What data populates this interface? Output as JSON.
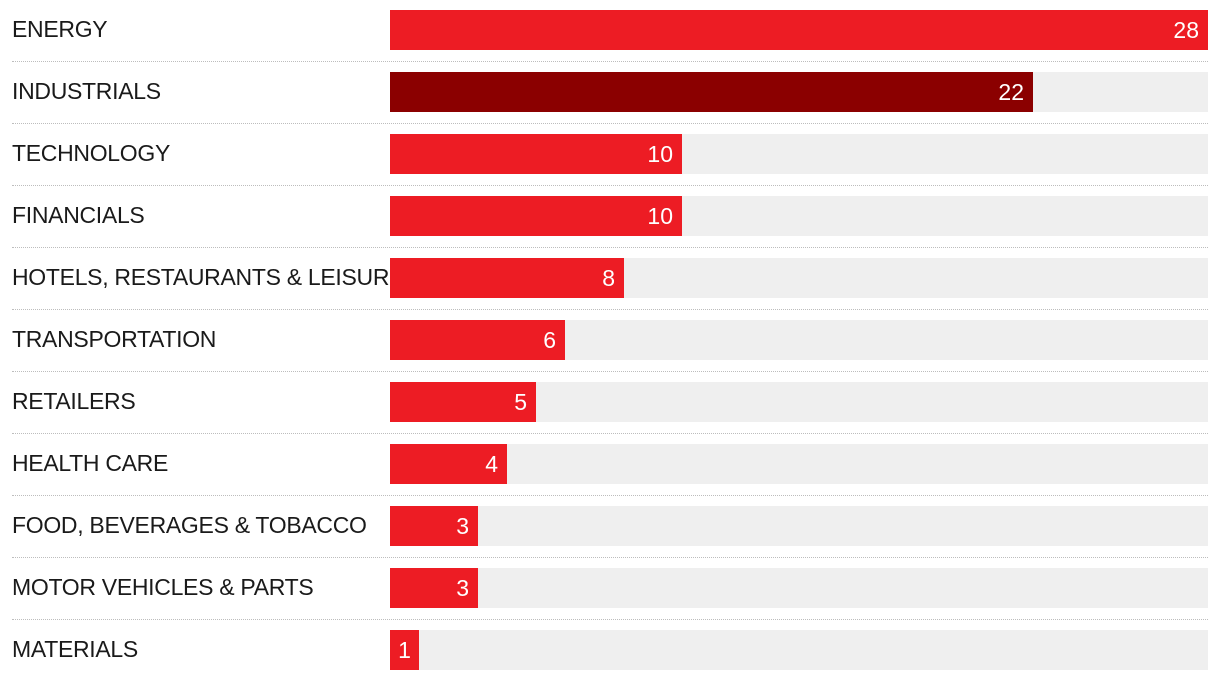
{
  "chart_data": {
    "type": "bar",
    "orientation": "horizontal",
    "title": "",
    "xlabel": "",
    "ylabel": "",
    "xlim": [
      0,
      28
    ],
    "grid": false,
    "categories": [
      "ENERGY",
      "INDUSTRIALS",
      "TECHNOLOGY",
      "FINANCIALS",
      "HOTELS, RESTAURANTS & LEISURE",
      "TRANSPORTATION",
      "RETAILERS",
      "HEALTH CARE",
      "FOOD, BEVERAGES & TOBACCO",
      "MOTOR VEHICLES & PARTS",
      "MATERIALS"
    ],
    "values": [
      28,
      22,
      10,
      10,
      8,
      6,
      5,
      4,
      3,
      3,
      1
    ],
    "value_labels": [
      "28",
      "22",
      "10",
      "10",
      "8",
      "6",
      "5",
      "4",
      "3",
      "3",
      "1"
    ],
    "highlight_index": 1,
    "colors": {
      "bar": "#ed1c24",
      "highlight": "#8b0000",
      "track": "#efefef",
      "label": "#1a1a1a",
      "value_text": "#ffffff"
    }
  }
}
